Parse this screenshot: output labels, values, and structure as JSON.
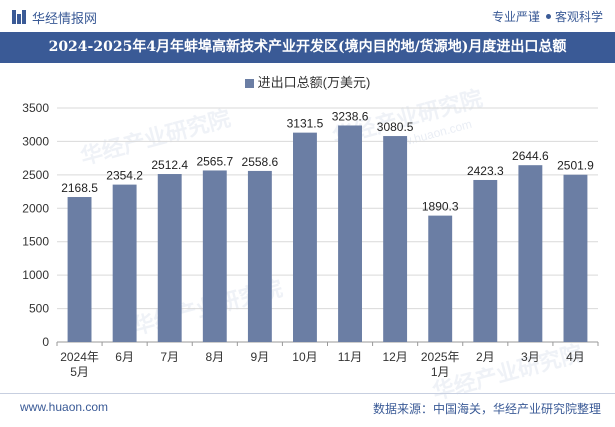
{
  "header": {
    "brand": "华经情报网",
    "slogan_left": "专业严谨",
    "slogan_right": "客观科学"
  },
  "title": "2024-2025年4月年蚌埠高新技术产业开发区(境内目的地/货源地)月度进出口总额",
  "watermark": {
    "text": "华经产业研究院",
    "url": "www.huaon.com"
  },
  "footer": {
    "website": "www.huaon.com",
    "source": "数据来源：中国海关，华经产业研究院整理"
  },
  "colors": {
    "brand": "#3a5a96",
    "bar": "#6b7ea4",
    "grid": "#d9d9d9"
  },
  "chart_data": {
    "type": "bar",
    "categories": [
      "2024年5月",
      "6月",
      "7月",
      "8月",
      "9月",
      "10月",
      "11月",
      "12月",
      "2025年1月",
      "2月",
      "3月",
      "4月"
    ],
    "series": [
      {
        "name": "进出口总额(万美元)",
        "values": [
          2168.5,
          2354.2,
          2512.4,
          2565.7,
          2558.6,
          3131.5,
          3238.6,
          3080.5,
          1890.3,
          2423.3,
          2644.6,
          2501.9
        ]
      }
    ],
    "yticks": [
      0,
      500,
      1000,
      1500,
      2000,
      2500,
      3000,
      3500
    ],
    "ylim": [
      0,
      3500
    ],
    "grid": true,
    "legend": "top-center"
  }
}
